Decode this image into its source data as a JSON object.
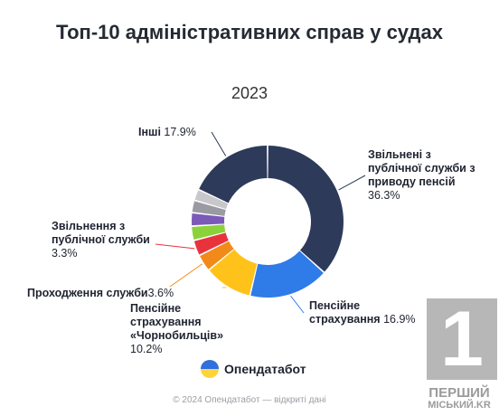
{
  "title": "Топ-10 адміністративних справ у судах",
  "subtitle": "2023",
  "chart_data": {
    "type": "pie",
    "title": "Топ-10 адміністративних справ у судах",
    "subtitle": "2023",
    "slices": [
      {
        "name": "Звільнені з публічної служби з приводу пенсій",
        "value": 36.3,
        "label": "36.3%",
        "color": "#2d3a5a"
      },
      {
        "name": "Пенсійне страхування",
        "value": 16.9,
        "label": "16.9%",
        "color": "#2f7be8"
      },
      {
        "name": "Пенсійне страхування «Чорнобильців»",
        "value": 10.2,
        "label": "10.2%",
        "color": "#ffc21a"
      },
      {
        "name": "Проходження служби",
        "value": 3.6,
        "label": "3.6%",
        "color": "#f28a1a"
      },
      {
        "name": "Звільнення з публічної служби",
        "value": 3.3,
        "label": "3.3%",
        "color": "#e8333d"
      },
      {
        "name": "",
        "value": 3.0,
        "label": "",
        "color": "#8bd23a"
      },
      {
        "name": "",
        "value": 2.8,
        "label": "",
        "color": "#7b59b8"
      },
      {
        "name": "",
        "value": 2.6,
        "label": "",
        "color": "#9a9aa3"
      },
      {
        "name": "",
        "value": 2.4,
        "label": "",
        "color": "#c8c8cc"
      },
      {
        "name": "Інші",
        "value": 17.9,
        "label": "17.9%",
        "color": "#2d3a5a"
      }
    ]
  },
  "labels": {
    "inshi": {
      "name": "Інші",
      "value": "17.9%"
    },
    "zvilneni": {
      "line1": "Звільнені з",
      "line2": "публічної служби з",
      "line3": "приводу пенсій",
      "value": "36.3%"
    },
    "pensiine": {
      "line1": "Пенсійне",
      "line2": "страхування",
      "value": "16.9%"
    },
    "chornobyl": {
      "line1": "Пенсійне",
      "line2": "страхування",
      "line3": "«Чорнобильців»",
      "value": "10.2%"
    },
    "prokhodzhennia": {
      "name": "Проходження служби",
      "value": "3.6%"
    },
    "zvilnennia": {
      "line1": "Звільнення з",
      "line2": "публічної служби",
      "value": "3.3%"
    }
  },
  "logo": {
    "text": "Опендатабот"
  },
  "footer": "© 2024 Опендатабот — відкриті дані",
  "watermark": {
    "digit": "1",
    "line1": "ПЕРШИЙ",
    "line2": "МІСЬКИЙ.KR"
  }
}
